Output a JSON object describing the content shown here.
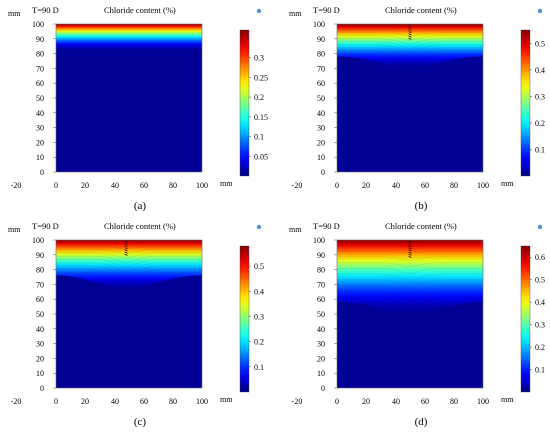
{
  "figure": {
    "panels": [
      {
        "caption": "(a)",
        "time_label": "T=90 D",
        "title": "Chloride content (%)",
        "axis_unit": "mm"
      },
      {
        "caption": "(b)",
        "time_label": "T=90 D",
        "title": "Chloride content (%)",
        "axis_unit": "mm"
      },
      {
        "caption": "(c)",
        "time_label": "T=90 D",
        "title": "Chloride content (%)",
        "axis_unit": "mm"
      },
      {
        "caption": "(d)",
        "time_label": "T=90 D",
        "title": "Chloride content (%)",
        "axis_unit": "mm"
      }
    ]
  },
  "chart_data": [
    {
      "type": "heatmap",
      "caption": "(a)",
      "title": "Chloride content (%)",
      "annotation": "T=90 D",
      "xlabel": "mm",
      "ylabel": "mm",
      "xlim": [
        -20,
        110
      ],
      "ylim": [
        -5,
        105
      ],
      "x_ticks": [
        -20,
        0,
        20,
        40,
        60,
        80,
        100
      ],
      "y_ticks": [
        0,
        10,
        20,
        30,
        40,
        50,
        60,
        70,
        80,
        90,
        100
      ],
      "domain_x": [
        0,
        100
      ],
      "domain_y": [
        0,
        100
      ],
      "surface_value": 0.37,
      "penetration_depth_mm": 18,
      "crack": null,
      "colorbar": {
        "min": 0,
        "max": 0.37,
        "ticks": [
          0.05,
          0.1,
          0.15,
          0.2,
          0.25,
          0.3
        ]
      }
    },
    {
      "type": "heatmap",
      "caption": "(b)",
      "title": "Chloride content (%)",
      "annotation": "T=90 D",
      "xlabel": "mm",
      "ylabel": "mm",
      "xlim": [
        -20,
        110
      ],
      "ylim": [
        -5,
        105
      ],
      "x_ticks": [
        -20,
        0,
        20,
        40,
        60,
        80,
        100
      ],
      "y_ticks": [
        0,
        10,
        20,
        30,
        40,
        50,
        60,
        70,
        80,
        90,
        100
      ],
      "domain_x": [
        0,
        100
      ],
      "domain_y": [
        0,
        100
      ],
      "surface_value": 0.55,
      "penetration_depth_mm": 22,
      "crack": {
        "x": 50,
        "depth_mm": 10,
        "dip_mm": 8
      },
      "colorbar": {
        "min": 0,
        "max": 0.55,
        "ticks": [
          0.1,
          0.2,
          0.3,
          0.4,
          0.5
        ]
      }
    },
    {
      "type": "heatmap",
      "caption": "(c)",
      "title": "Chloride content (%)",
      "annotation": "T=90 D",
      "xlabel": "mm",
      "ylabel": "mm",
      "xlim": [
        -20,
        110
      ],
      "ylim": [
        -5,
        105
      ],
      "x_ticks": [
        -20,
        0,
        20,
        40,
        60,
        80,
        100
      ],
      "y_ticks": [
        0,
        10,
        20,
        30,
        40,
        50,
        60,
        70,
        80,
        90,
        100
      ],
      "domain_x": [
        0,
        100
      ],
      "domain_y": [
        0,
        100
      ],
      "surface_value": 0.58,
      "penetration_depth_mm": 24,
      "crack": {
        "x": 48,
        "depth_mm": 10,
        "dip_mm": 10
      },
      "colorbar": {
        "min": 0,
        "max": 0.58,
        "ticks": [
          0.1,
          0.2,
          0.3,
          0.4,
          0.5
        ]
      }
    },
    {
      "type": "heatmap",
      "caption": "(d)",
      "title": "Chloride content (%)",
      "annotation": "T=90 D",
      "xlabel": "mm",
      "ylabel": "mm",
      "xlim": [
        -20,
        110
      ],
      "ylim": [
        -5,
        105
      ],
      "x_ticks": [
        -20,
        0,
        20,
        40,
        60,
        80,
        100
      ],
      "y_ticks": [
        0,
        10,
        20,
        30,
        40,
        50,
        60,
        70,
        80,
        90,
        100
      ],
      "domain_x": [
        0,
        100
      ],
      "domain_y": [
        0,
        100
      ],
      "surface_value": 0.65,
      "penetration_depth_mm": 42,
      "crack": {
        "x": 50,
        "depth_mm": 12,
        "dip_mm": 8
      },
      "colorbar": {
        "min": 0,
        "max": 0.65,
        "ticks": [
          0.1,
          0.2,
          0.3,
          0.4,
          0.5,
          0.6
        ]
      }
    }
  ]
}
